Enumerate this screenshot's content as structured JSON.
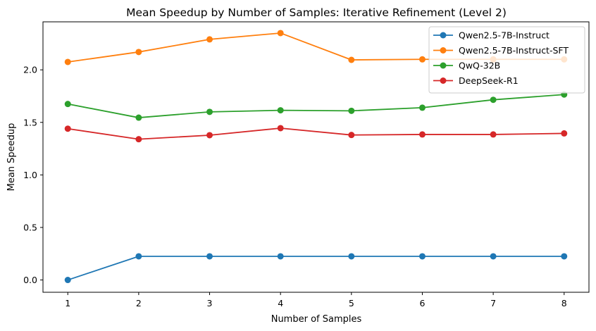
{
  "chart_data": {
    "type": "line",
    "title": "Mean Speedup by Number of Samples: Iterative Refinement (Level 2)",
    "xlabel": "Number of Samples",
    "ylabel": "Mean Speedup",
    "x": [
      1,
      2,
      3,
      4,
      5,
      6,
      7,
      8
    ],
    "xlim": [
      0.65,
      8.35
    ],
    "ylim": [
      -0.117,
      2.457
    ],
    "xticks": [
      1,
      2,
      3,
      4,
      5,
      6,
      7,
      8
    ],
    "yticks": [
      0.0,
      0.5,
      1.0,
      1.5,
      2.0
    ],
    "ytick_labels": [
      "0.0",
      "0.5",
      "1.0",
      "1.5",
      "2.0"
    ],
    "grid": false,
    "legend_position": "top-right",
    "series": [
      {
        "name": "Qwen2.5-7B-Instruct",
        "color": "#1f77b4",
        "values": [
          0.0,
          0.225,
          0.225,
          0.225,
          0.225,
          0.225,
          0.225,
          0.225
        ]
      },
      {
        "name": "Qwen2.5-7B-Instruct-SFT",
        "color": "#ff7f0e",
        "values": [
          2.075,
          2.17,
          2.29,
          2.35,
          2.095,
          2.1,
          2.1,
          2.1
        ]
      },
      {
        "name": "QwQ-32B",
        "color": "#2ca02c",
        "values": [
          1.675,
          1.545,
          1.6,
          1.615,
          1.61,
          1.64,
          1.715,
          1.765
        ]
      },
      {
        "name": "DeepSeek-R1",
        "color": "#d62728",
        "values": [
          1.44,
          1.34,
          1.378,
          1.445,
          1.38,
          1.385,
          1.385,
          1.395
        ]
      }
    ]
  }
}
